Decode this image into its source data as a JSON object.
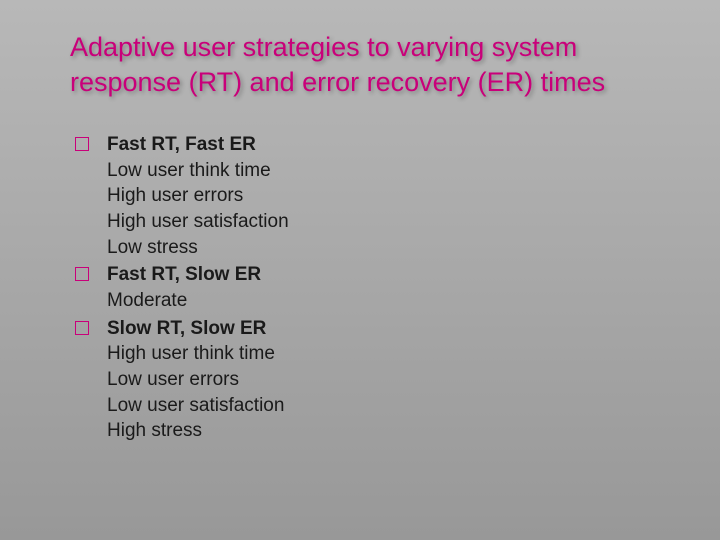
{
  "slide": {
    "title": "Adaptive user strategies to varying system response (RT) and error recovery (ER) times",
    "title_color": "#c9007a",
    "title_fontsize": 27,
    "background_gradient": [
      "#b8b8b8",
      "#989898"
    ],
    "bullet_border_color": "#c9007a",
    "body_color": "#1a1a1a",
    "body_fontsize": 19,
    "items": [
      {
        "heading": "Fast RT, Fast ER",
        "lines": [
          "Low user think time",
          "High user errors",
          "High user satisfaction",
          "Low stress"
        ]
      },
      {
        "heading": "Fast RT, Slow ER",
        "lines": [
          "Moderate"
        ]
      },
      {
        "heading": "Slow RT, Slow ER",
        "lines": [
          "High user think time",
          "Low user errors",
          "Low user satisfaction",
          "High stress"
        ]
      }
    ]
  }
}
